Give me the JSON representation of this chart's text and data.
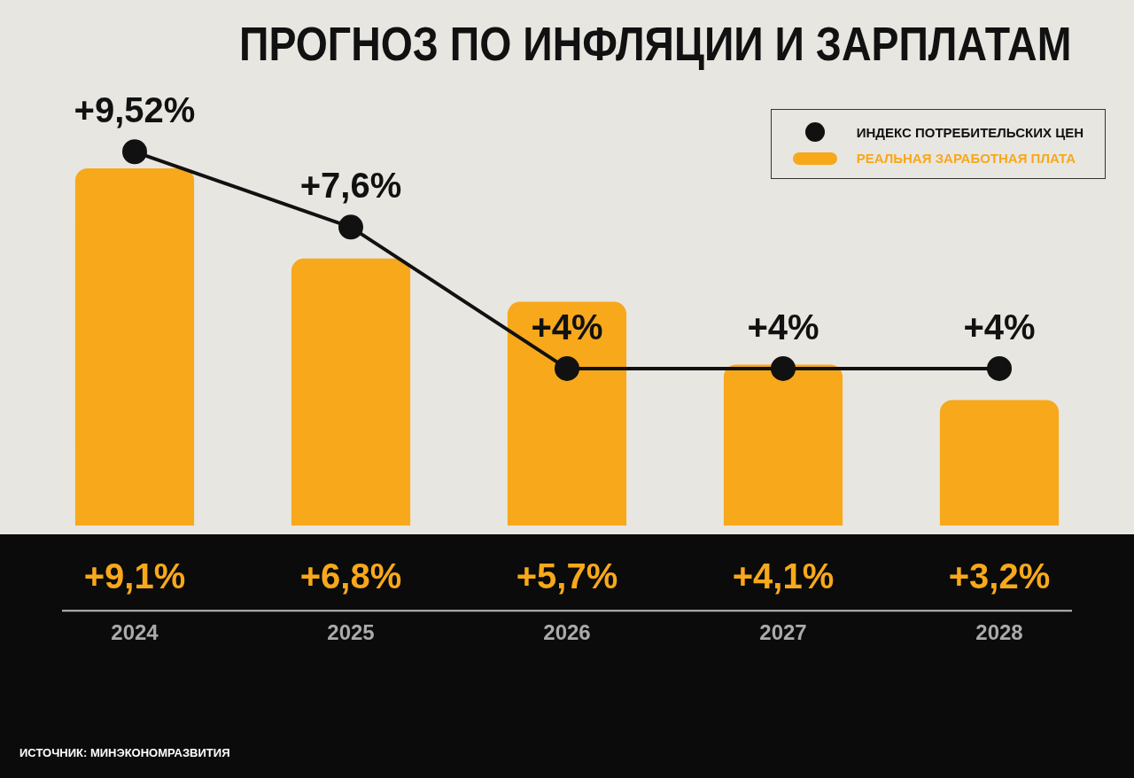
{
  "chart_data": {
    "type": "bar",
    "title": "ПРОГНОЗ ПО ИНФЛЯЦИИ И ЗАРПЛАТАМ",
    "categories": [
      "2024",
      "2025",
      "2026",
      "2027",
      "2028"
    ],
    "series": [
      {
        "name": "ИНДЕКС ПОТРЕБИТЕЛЬСКИХ ЦЕН",
        "type": "line",
        "color": "#111111",
        "values": [
          9.52,
          7.6,
          4,
          4,
          4
        ],
        "value_labels": [
          "+9,52%",
          "+7,6%",
          "+4%",
          "+4%",
          "+4%"
        ]
      },
      {
        "name": "РЕАЛЬНАЯ ЗАРАБОТНАЯ ПЛАТА",
        "color": "#f7a81b",
        "values": [
          9.1,
          6.8,
          5.7,
          4.1,
          3.2
        ],
        "value_labels": [
          "+9,1%",
          "+6,8%",
          "+5,7%",
          "+4,1%",
          "+3,2%"
        ]
      }
    ],
    "marker": "circle",
    "legend": "top right",
    "tick_labels": "x",
    "annotations": [
      "ИСТОЧНИК: МИНЭКОНОМРАЗВИТИЯ"
    ]
  }
}
